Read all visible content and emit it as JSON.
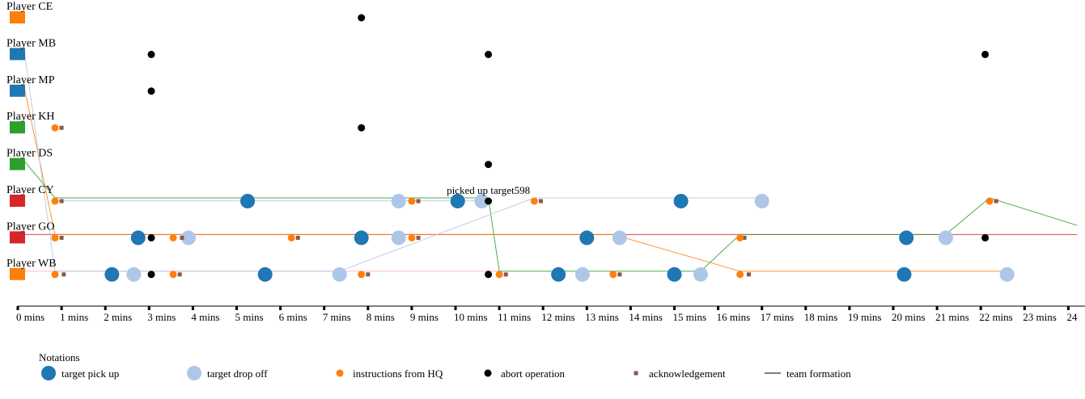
{
  "chart_data": {
    "type": "scatter",
    "title": "",
    "xlabel": "",
    "ylabel": "",
    "xlim": [
      0,
      24.2
    ],
    "x_ticks": [
      "0 mins",
      "1 mins",
      "2 mins",
      "3 mins",
      "4 mins",
      "5 mins",
      "6 mins",
      "7 mins",
      "8 mins",
      "9 mins",
      "10 mins",
      "11 mins",
      "12 mins",
      "13 mins",
      "14 mins",
      "15 mins",
      "16 mins",
      "17 mins",
      "18 mins",
      "19 mins",
      "20 mins",
      "21 mins",
      "22 mins",
      "23 mins",
      "24"
    ],
    "players": [
      {
        "name": "Player CE",
        "color": "#ff7f0e"
      },
      {
        "name": "Player MB",
        "color": "#1f77b4"
      },
      {
        "name": "Player MP",
        "color": "#1f77b4"
      },
      {
        "name": "Player KH",
        "color": "#2ca02c"
      },
      {
        "name": "Player DS",
        "color": "#2ca02c"
      },
      {
        "name": "Player CY",
        "color": "#d62728"
      },
      {
        "name": "Player GO",
        "color": "#d62728"
      },
      {
        "name": "Player WB",
        "color": "#ff7f0e"
      }
    ],
    "colors": {
      "target_pickup": "#1f77b4",
      "target_dropoff": "#aec7e8",
      "instructions": "#ff7f0e",
      "abort": "#000000",
      "acknowledgement": "#8c564b",
      "team_green": "#2ca02c",
      "team_orange": "#ff7f0e",
      "team_lightblue": "#aec7e8",
      "team_red": "#d62728",
      "team_pink": "#ffb3b3"
    },
    "events": {
      "target_pickup": [
        {
          "player": 5,
          "t": 5.25
        },
        {
          "player": 5,
          "t": 10.05
        },
        {
          "player": 5,
          "t": 15.15
        },
        {
          "player": 6,
          "t": 2.75
        },
        {
          "player": 6,
          "t": 7.85
        },
        {
          "player": 6,
          "t": 13.0
        },
        {
          "player": 6,
          "t": 20.3
        },
        {
          "player": 7,
          "t": 2.15
        },
        {
          "player": 7,
          "t": 5.65
        },
        {
          "player": 7,
          "t": 12.35
        },
        {
          "player": 7,
          "t": 15.0
        },
        {
          "player": 7,
          "t": 20.25
        }
      ],
      "target_dropoff": [
        {
          "player": 5,
          "t": 8.7
        },
        {
          "player": 5,
          "t": 10.6
        },
        {
          "player": 5,
          "t": 17.0
        },
        {
          "player": 6,
          "t": 3.9
        },
        {
          "player": 6,
          "t": 8.7
        },
        {
          "player": 6,
          "t": 13.75
        },
        {
          "player": 6,
          "t": 21.2
        },
        {
          "player": 7,
          "t": 2.65
        },
        {
          "player": 7,
          "t": 7.35
        },
        {
          "player": 7,
          "t": 12.9
        },
        {
          "player": 7,
          "t": 15.6
        },
        {
          "player": 7,
          "t": 22.6
        }
      ],
      "instructions": [
        {
          "player": 3,
          "t": 0.85
        },
        {
          "player": 5,
          "t": 0.85
        },
        {
          "player": 5,
          "t": 9.0
        },
        {
          "player": 5,
          "t": 11.8
        },
        {
          "player": 5,
          "t": 22.2
        },
        {
          "player": 6,
          "t": 0.85
        },
        {
          "player": 6,
          "t": 3.55
        },
        {
          "player": 6,
          "t": 6.25
        },
        {
          "player": 6,
          "t": 9.0
        },
        {
          "player": 6,
          "t": 16.5
        },
        {
          "player": 7,
          "t": 0.85
        },
        {
          "player": 7,
          "t": 3.55
        },
        {
          "player": 7,
          "t": 7.85
        },
        {
          "player": 7,
          "t": 11.0
        },
        {
          "player": 7,
          "t": 13.6
        },
        {
          "player": 7,
          "t": 16.5
        }
      ],
      "abort": [
        {
          "player": 0,
          "t": 7.85
        },
        {
          "player": 1,
          "t": 3.05
        },
        {
          "player": 1,
          "t": 10.75
        },
        {
          "player": 1,
          "t": 22.1
        },
        {
          "player": 2,
          "t": 3.05
        },
        {
          "player": 3,
          "t": 7.85
        },
        {
          "player": 4,
          "t": 10.75
        },
        {
          "player": 5,
          "t": 10.75
        },
        {
          "player": 6,
          "t": 3.05
        },
        {
          "player": 6,
          "t": 22.1
        },
        {
          "player": 7,
          "t": 3.05
        },
        {
          "player": 7,
          "t": 10.75
        }
      ],
      "acknowledgement": [
        {
          "player": 3,
          "t": 1.0
        },
        {
          "player": 5,
          "t": 1.0
        },
        {
          "player": 5,
          "t": 9.15
        },
        {
          "player": 5,
          "t": 11.95
        },
        {
          "player": 5,
          "t": 22.35
        },
        {
          "player": 6,
          "t": 1.0
        },
        {
          "player": 6,
          "t": 3.75
        },
        {
          "player": 6,
          "t": 6.4
        },
        {
          "player": 6,
          "t": 9.15
        },
        {
          "player": 6,
          "t": 16.6
        },
        {
          "player": 7,
          "t": 1.05
        },
        {
          "player": 7,
          "t": 3.7
        },
        {
          "player": 7,
          "t": 8.0
        },
        {
          "player": 7,
          "t": 11.15
        },
        {
          "player": 7,
          "t": 13.75
        },
        {
          "player": 7,
          "t": 16.7
        }
      ]
    },
    "team_formation": [
      {
        "color": "#d62728",
        "points": [
          [
            0.1,
            6
          ],
          [
            24.2,
            6
          ]
        ]
      },
      {
        "color": "#ffb3b3",
        "points": [
          [
            0.1,
            7
          ],
          [
            11.0,
            7
          ]
        ]
      },
      {
        "color": "#2ca02c",
        "points": [
          [
            0.15,
            4
          ],
          [
            0.85,
            5
          ],
          [
            10.75,
            5
          ],
          [
            11.0,
            7
          ],
          [
            15.6,
            7
          ],
          [
            16.5,
            6
          ],
          [
            21.2,
            6
          ],
          [
            22.2,
            5
          ],
          [
            24.2,
            5.75
          ]
        ]
      },
      {
        "color": "#ff7f0e",
        "points": [
          [
            0.15,
            2
          ],
          [
            0.85,
            6
          ],
          [
            13.6,
            6
          ],
          [
            16.5,
            7
          ],
          [
            22.6,
            7
          ]
        ]
      },
      {
        "color": "#aec7e8",
        "points": [
          [
            0.15,
            1
          ],
          [
            0.85,
            7
          ],
          [
            7.35,
            7
          ],
          [
            11.8,
            5
          ],
          [
            17.0,
            5
          ]
        ]
      },
      {
        "color": "#aec7e8",
        "points": [
          [
            0.85,
            5.08
          ],
          [
            10.6,
            5.08
          ]
        ]
      }
    ],
    "annotations": [
      {
        "text": "picked up target598",
        "t": 10.75,
        "player": 5
      }
    ],
    "legend": {
      "title": "Notations",
      "placement": "bottom-left",
      "items": [
        {
          "type": "target_pickup",
          "label": "target pick up"
        },
        {
          "type": "target_dropoff",
          "label": "target drop off"
        },
        {
          "type": "instructions",
          "label": "instructions from HQ"
        },
        {
          "type": "abort",
          "label": "abort operation"
        },
        {
          "type": "acknowledgement",
          "label": "acknowledgement"
        },
        {
          "type": "team_formation",
          "label": "team formation"
        }
      ]
    },
    "grid": false
  }
}
